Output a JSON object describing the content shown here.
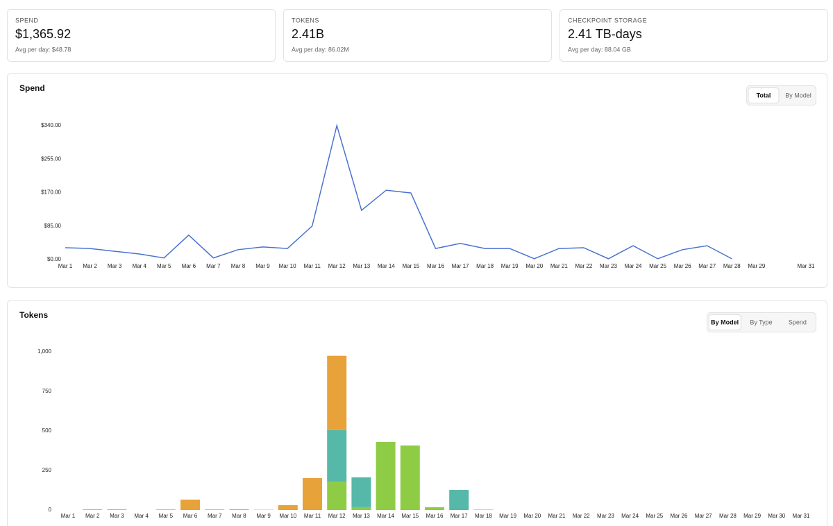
{
  "cards": [
    {
      "label": "SPEND",
      "value": "$1,365.92",
      "sub": "Avg per day: $48.78"
    },
    {
      "label": "TOKENS",
      "value": "2.41B",
      "sub": "Avg per day: 86.02M"
    },
    {
      "label": "CHECKPOINT STORAGE",
      "value": "2.41 TB-days",
      "sub": "Avg per day: 88.04 GB"
    }
  ],
  "chart_data": [
    {
      "type": "line",
      "title": "Spend",
      "toggles": [
        "Total",
        "By Model"
      ],
      "active_toggle": 0,
      "categories": [
        "Mar 1",
        "Mar 2",
        "Mar 3",
        "Mar 4",
        "Mar 5",
        "Mar 6",
        "Mar 7",
        "Mar 8",
        "Mar 9",
        "Mar 10",
        "Mar 11",
        "Mar 12",
        "Mar 13",
        "Mar 14",
        "Mar 15",
        "Mar 16",
        "Mar 17",
        "Mar 18",
        "Mar 19",
        "Mar 20",
        "Mar 21",
        "Mar 22",
        "Mar 23",
        "Mar 24",
        "Mar 25",
        "Mar 26",
        "Mar 27",
        "Mar 28",
        "Mar 29",
        null,
        "Mar 31"
      ],
      "values": [
        30,
        28,
        21,
        14,
        4,
        62,
        4,
        25,
        32,
        28,
        85,
        340,
        125,
        176,
        169,
        28,
        41,
        28,
        28,
        2,
        28,
        30,
        2,
        35,
        2,
        25,
        35,
        2,
        null,
        null,
        null
      ],
      "color": "#4a72d0",
      "ylim": [
        0,
        340
      ],
      "yticks": [
        {
          "value": 0,
          "label": "$0.00"
        },
        {
          "value": 85,
          "label": "$85.00"
        },
        {
          "value": 170,
          "label": "$170.00"
        },
        {
          "value": 255,
          "label": "$255.00"
        },
        {
          "value": 340,
          "label": "$340.00"
        }
      ]
    },
    {
      "type": "stacked-bar",
      "title": "Tokens",
      "toggles": [
        "By Model",
        "By Type",
        "Spend"
      ],
      "active_toggle": 0,
      "categories": [
        "Mar 1",
        "Mar 2",
        "Mar 3",
        "Mar 4",
        "Mar 5",
        "Mar 6",
        "Mar 7",
        "Mar 8",
        "Mar 9",
        "Mar 10",
        "Mar 11",
        "Mar 12",
        "Mar 13",
        "Mar 14",
        "Mar 15",
        "Mar 16",
        "Mar 17",
        "Mar 18",
        "Mar 19",
        "Mar 20",
        "Mar 21",
        "Mar 22",
        "Mar 23",
        "Mar 24",
        "Mar 25",
        "Mar 26",
        "Mar 27",
        "Mar 28",
        "Mar 29",
        "Mar 30",
        "Mar 31"
      ],
      "series": [
        {
          "color": "#8fcc45",
          "values": [
            0,
            0,
            0,
            0,
            0,
            0,
            0,
            0,
            0,
            0,
            0,
            180,
            18,
            430,
            408,
            18,
            0,
            0,
            0,
            0,
            0,
            0,
            0,
            0,
            0,
            0,
            0,
            0,
            0,
            0,
            0
          ]
        },
        {
          "color": "#55b8a8",
          "values": [
            0,
            0,
            0,
            0,
            0,
            0,
            0,
            0,
            0,
            0,
            0,
            325,
            189,
            0,
            0,
            0,
            127,
            0,
            0,
            0,
            0,
            0,
            0,
            0,
            0,
            0,
            0,
            0,
            0,
            0,
            0
          ]
        },
        {
          "color": "#e8a23a",
          "values": [
            0,
            0,
            0,
            0,
            0,
            66,
            0,
            5,
            0,
            31,
            202,
            470,
            0,
            0,
            0,
            0,
            0,
            0,
            0,
            0,
            0,
            0,
            0,
            0,
            0,
            0,
            0,
            0,
            0,
            0,
            0
          ]
        },
        {
          "color": "#9db3ea",
          "values": [
            0,
            5,
            5,
            0,
            4,
            0,
            4,
            0,
            2,
            0,
            0,
            0,
            0,
            0,
            0,
            0,
            0,
            3,
            0,
            0,
            0,
            0,
            0,
            0,
            0,
            0,
            0,
            0,
            0,
            0,
            0
          ]
        }
      ],
      "ylim": [
        0,
        1000
      ],
      "yticks": [
        0,
        250,
        500,
        750,
        {
          "value": 1000,
          "label": "1,000"
        }
      ]
    }
  ]
}
